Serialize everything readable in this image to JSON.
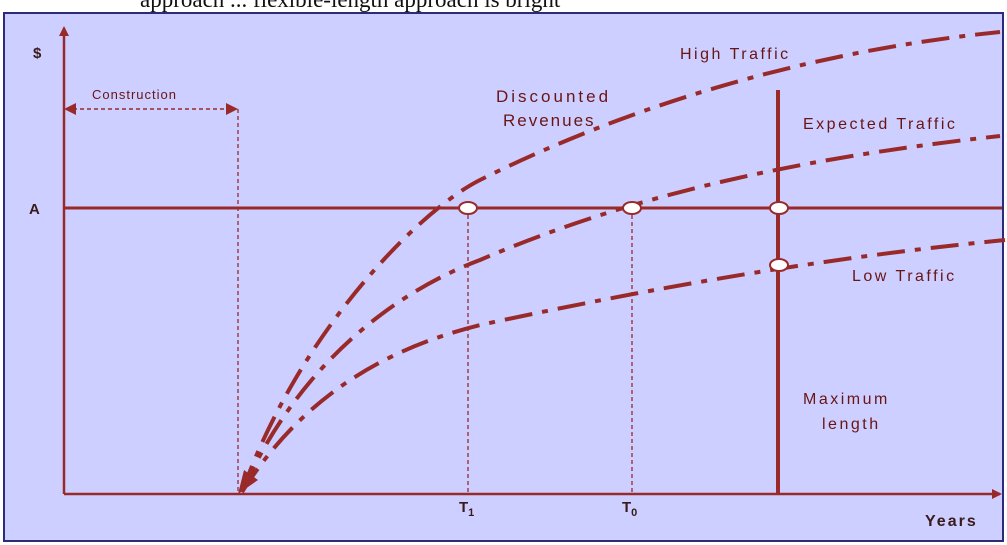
{
  "caption": "approach ... flexible-length approach is bright",
  "colors": {
    "background": "#cccfff",
    "border": "#2b2b7a",
    "curve": "#9a2a2a",
    "text": "#6b1414"
  },
  "labels": {
    "y_axis": "$",
    "level_a": "A",
    "x_axis": "Years",
    "construction": "Construction",
    "discounted_line1": "Discounted",
    "discounted_line2": "Revenues",
    "high_traffic": "High Traffic",
    "expected_traffic": "Expected Traffic",
    "low_traffic": "Low Traffic",
    "max_line1": "Maximum",
    "max_line2": "length",
    "t1_main": "T",
    "t1_sub": "1",
    "t0_main": "T",
    "t0_sub": "0"
  }
}
